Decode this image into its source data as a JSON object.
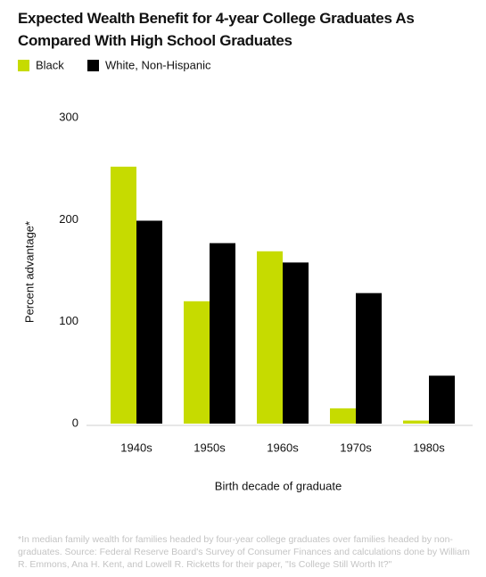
{
  "chart_data": {
    "type": "bar",
    "title": "Expected Wealth Benefit for 4-year College Graduates As Compared With High School Graduates",
    "categories": [
      "1940s",
      "1950s",
      "1960s",
      "1970s",
      "1980s"
    ],
    "series": [
      {
        "name": "Black",
        "color": "#c6db00",
        "values": [
          252,
          120,
          169,
          15,
          3
        ]
      },
      {
        "name": "White, Non-Hispanic",
        "color": "#000000",
        "values": [
          199,
          177,
          158,
          128,
          47
        ]
      }
    ],
    "ylim": [
      0,
      300
    ],
    "yticks": [
      0,
      100,
      200,
      300
    ],
    "grid": false,
    "y_label": "Percent advantage*",
    "x_label": "Birth decade of graduate",
    "footnote": "*In median family wealth for families headed by four-year college graduates over families headed by non-graduates. Source: Federal Reserve Board's Survey of Consumer Finances and calculations done by William R. Emmons, Ana H. Kent, and Lowell R. Ricketts for their paper, \"Is College Still Worth It?\""
  }
}
